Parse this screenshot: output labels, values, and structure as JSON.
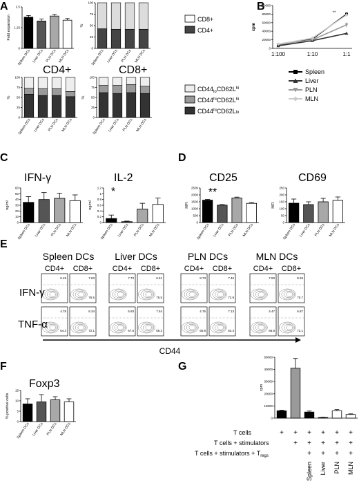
{
  "panel_letters": [
    "A",
    "B",
    "C",
    "D",
    "E",
    "F",
    "G"
  ],
  "colors": {
    "spleen": "#000000",
    "liver": "#555555",
    "pln": "#a8a8a8",
    "mln": "#ffffff",
    "cd8_seg": "#dcdcdc",
    "cd4_seg": "#444444",
    "cd44lo_seg": "#eeeeee",
    "cd44hi_seg": "#9a9a9a",
    "cd44hi_lo_seg": "#333333",
    "treg_untreated": "#000000",
    "treg_stim": "#9a9a9a",
    "treg_spleen": "#000000",
    "treg_liver": "#333333",
    "treg_pln": "#ffffff",
    "treg_mln": "#ffffff"
  },
  "legends": {
    "cd_ratio": [
      "CD8+",
      "CD4+"
    ],
    "cd44_main": [
      "CD44",
      "CD44",
      "CD44"
    ],
    "cd44_sup": [
      "lo",
      "hi",
      "hi"
    ],
    "cd62_main": [
      "CD62L",
      "CD62L",
      "CD62L"
    ],
    "cd62_sup": [
      "hi",
      "hi",
      "lo"
    ],
    "lines": [
      "Spleen",
      "Liver",
      "PLN",
      "MLN"
    ]
  },
  "titles": {
    "cd4": "CD4+",
    "cd8": "CD8+",
    "ifng": "IFN-γ",
    "il2": "IL-2",
    "cd25": "CD25",
    "cd69": "CD69",
    "foxp3": "Foxp3",
    "ifng_row": "IFN-γ",
    "tnfa_row": "TNF-α",
    "cd44_axis": "CD44"
  },
  "significance": {
    "il2": "*",
    "cd25": "**",
    "b_star": "**"
  },
  "flow": {
    "groups": [
      "Spleen DCs",
      "Liver DCs",
      "PLN DCs",
      "MLN DCs"
    ],
    "subgroups": [
      "CD4+",
      "CD8+"
    ],
    "ifng_values": [
      [
        "5.45",
        "7.63"
      ],
      [
        "7.73",
        "6.51"
      ],
      [
        "8.73",
        "7.46"
      ],
      [
        "7.83",
        "8.26"
      ]
    ],
    "ifng_lower": [
      [
        "",
        "76.5"
      ],
      [
        "",
        "75.5"
      ],
      [
        "",
        "72.9"
      ],
      [
        "",
        "70.7"
      ]
    ],
    "tnfa_values": [
      [
        "4.78",
        "8.34"
      ],
      [
        "5.93",
        "7.54"
      ],
      [
        "4.75",
        "7.13"
      ],
      [
        "4.47",
        "6.87"
      ]
    ],
    "tnfa_lower": [
      [
        "64.3",
        "72.1"
      ],
      [
        "67.5",
        "65.2"
      ],
      [
        "65.8",
        "63.4"
      ],
      [
        "66.8",
        "72.1"
      ]
    ]
  },
  "treg_table": {
    "row_labels": [
      "T cells",
      "T cells + stimulators",
      "T cells + stimulators + T"
    ],
    "row_sub": "regs",
    "marks": [
      [
        "+",
        "+",
        "+",
        "+",
        "+",
        "+"
      ],
      [
        "",
        "+",
        "+",
        "+",
        "+",
        "+"
      ],
      [
        "",
        "",
        "+",
        "+",
        "+",
        "+"
      ]
    ],
    "column_labels": [
      "Spleen",
      "Liver",
      "PLN",
      "MLN"
    ]
  },
  "chart_data": [
    {
      "panel": "A",
      "type": "bar",
      "categories": [
        "Spleen DCs",
        "Liver DCs",
        "PLN DCs",
        "MLN DCs"
      ],
      "values": [
        1.88,
        1.65,
        1.95,
        1.7
      ],
      "errors": [
        0.1,
        0.12,
        0.1,
        0.1
      ],
      "ylabel": "Fold expansion",
      "ylim": [
        0,
        2.5
      ]
    },
    {
      "panel": "A",
      "type": "bar",
      "stacked": true,
      "categories": [
        "Spleen DCs",
        "Liver DCs",
        "PLN DCs",
        "MLN DCs"
      ],
      "series": [
        {
          "name": "CD4+",
          "values": [
            43,
            42,
            42,
            42
          ]
        },
        {
          "name": "CD8+",
          "values": [
            57,
            58,
            58,
            58
          ]
        }
      ],
      "ylabel": "%",
      "ylim": [
        0,
        100
      ],
      "yticks": [
        0,
        25,
        50,
        75,
        100
      ]
    },
    {
      "panel": "A",
      "type": "bar",
      "stacked": true,
      "title": "CD4+",
      "categories": [
        "Spleen DCs",
        "Liver DCs",
        "PLN DCs",
        "MLN DCs"
      ],
      "series": [
        {
          "name": "CD44hiCD62Llo",
          "values": [
            58,
            55,
            55,
            52
          ]
        },
        {
          "name": "CD44hiCD62Lhi",
          "values": [
            15,
            17,
            17,
            13
          ]
        },
        {
          "name": "CD44loCD62Lhi",
          "values": [
            27,
            28,
            28,
            35
          ]
        }
      ],
      "ylabel": "%",
      "ylim": [
        0,
        100
      ],
      "yticks": [
        0,
        25,
        50,
        75,
        100
      ]
    },
    {
      "panel": "A",
      "type": "bar",
      "stacked": true,
      "title": "CD8+",
      "categories": [
        "Spleen DCs",
        "Liver DCs",
        "PLN DCs",
        "MLN DCs"
      ],
      "series": [
        {
          "name": "CD44hiCD62Llo",
          "values": [
            62,
            60,
            62,
            60
          ]
        },
        {
          "name": "CD44hiCD62Lhi",
          "values": [
            18,
            20,
            20,
            18
          ]
        },
        {
          "name": "CD44loCD62Lhi",
          "values": [
            20,
            20,
            18,
            22
          ]
        }
      ],
      "ylabel": "%",
      "ylim": [
        0,
        100
      ],
      "yticks": [
        0,
        25,
        50,
        75,
        100
      ]
    },
    {
      "panel": "B",
      "type": "line",
      "x": [
        "1:100",
        "1:10",
        "1:1"
      ],
      "ylabel": "cpm",
      "ylim": [
        0,
        100000
      ],
      "yticks": [
        0,
        20000,
        40000,
        60000,
        80000,
        100000
      ],
      "series": [
        {
          "name": "Spleen",
          "values": [
            8000,
            22000,
            80000
          ],
          "errors": [
            1500,
            2500,
            4000
          ]
        },
        {
          "name": "Liver",
          "values": [
            6000,
            18000,
            35000
          ],
          "errors": [
            1500,
            2000,
            2500
          ]
        },
        {
          "name": "PLN",
          "values": [
            9000,
            20000,
            55000
          ],
          "errors": [
            1500,
            2500,
            6000
          ]
        },
        {
          "name": "MLN",
          "values": [
            10000,
            24000,
            78000
          ],
          "errors": [
            1500,
            2500,
            4000
          ]
        }
      ]
    },
    {
      "panel": "C",
      "type": "bar",
      "title": "IFN-γ",
      "categories": [
        "Spleen DCs",
        "Liver DCs",
        "PLN DCs",
        "MLN DCs"
      ],
      "values": [
        35,
        40,
        42,
        38
      ],
      "errors": [
        10,
        12,
        9,
        10
      ],
      "ylabel": "ng/ml",
      "ylim": [
        0,
        60
      ],
      "yticks": [
        0,
        10,
        20,
        30,
        40,
        50,
        60
      ]
    },
    {
      "panel": "C",
      "type": "bar",
      "title": "IL-2",
      "categories": [
        "Spleen DCs",
        "Liver DCs",
        "PLN DCs",
        "MLN DCs"
      ],
      "values": [
        0.14,
        0.03,
        0.47,
        0.63
      ],
      "errors": [
        0.12,
        0.02,
        0.2,
        0.22
      ],
      "ylabel": "ng/ml",
      "ylim": [
        0,
        1.2
      ],
      "yticks": [
        0,
        0.2,
        0.4,
        0.6,
        0.8,
        1.0,
        1.2
      ]
    },
    {
      "panel": "D",
      "type": "bar",
      "title": "CD25",
      "categories": [
        "Spleen DCs",
        "Liver DCs",
        "PLN DCs",
        "MLN DCs"
      ],
      "values": [
        1620,
        1260,
        1780,
        1390
      ],
      "errors": [
        50,
        40,
        60,
        50
      ],
      "ylabel": "MFI",
      "ylim": [
        0,
        2500
      ],
      "yticks": [
        0,
        500,
        1000,
        1500,
        2000,
        2500
      ]
    },
    {
      "panel": "D",
      "type": "bar",
      "title": "CD69",
      "categories": [
        "Spleen DCs",
        "Liver DCs",
        "PLN DCs",
        "MLN DCs"
      ],
      "values": [
        140,
        130,
        150,
        160
      ],
      "errors": [
        30,
        20,
        25,
        25
      ],
      "ylabel": "MFI",
      "ylim": [
        0,
        250
      ],
      "yticks": [
        0,
        50,
        100,
        150,
        200,
        250
      ]
    },
    {
      "panel": "F",
      "type": "bar",
      "title": "Foxp3",
      "categories": [
        "Spleen DCs",
        "Liver DCs",
        "PLN DCs",
        "MLN DCs"
      ],
      "values": [
        8.5,
        9.5,
        10.5,
        9.5
      ],
      "errors": [
        2.5,
        3.5,
        1.5,
        1.5
      ],
      "ylabel": "% positive cells",
      "ylim": [
        0,
        15
      ],
      "yticks": [
        0,
        5,
        10,
        15
      ]
    },
    {
      "panel": "G",
      "type": "bar",
      "categories": [
        "1",
        "2",
        "3",
        "4",
        "5",
        "6"
      ],
      "values": [
        6000,
        41000,
        5000,
        500,
        6000,
        3000
      ],
      "errors": [
        500,
        8000,
        800,
        200,
        1000,
        500
      ],
      "ylabel": "cpm",
      "ylim": [
        0,
        50000
      ],
      "yticks": [
        0,
        10000,
        20000,
        30000,
        40000,
        50000
      ]
    }
  ]
}
